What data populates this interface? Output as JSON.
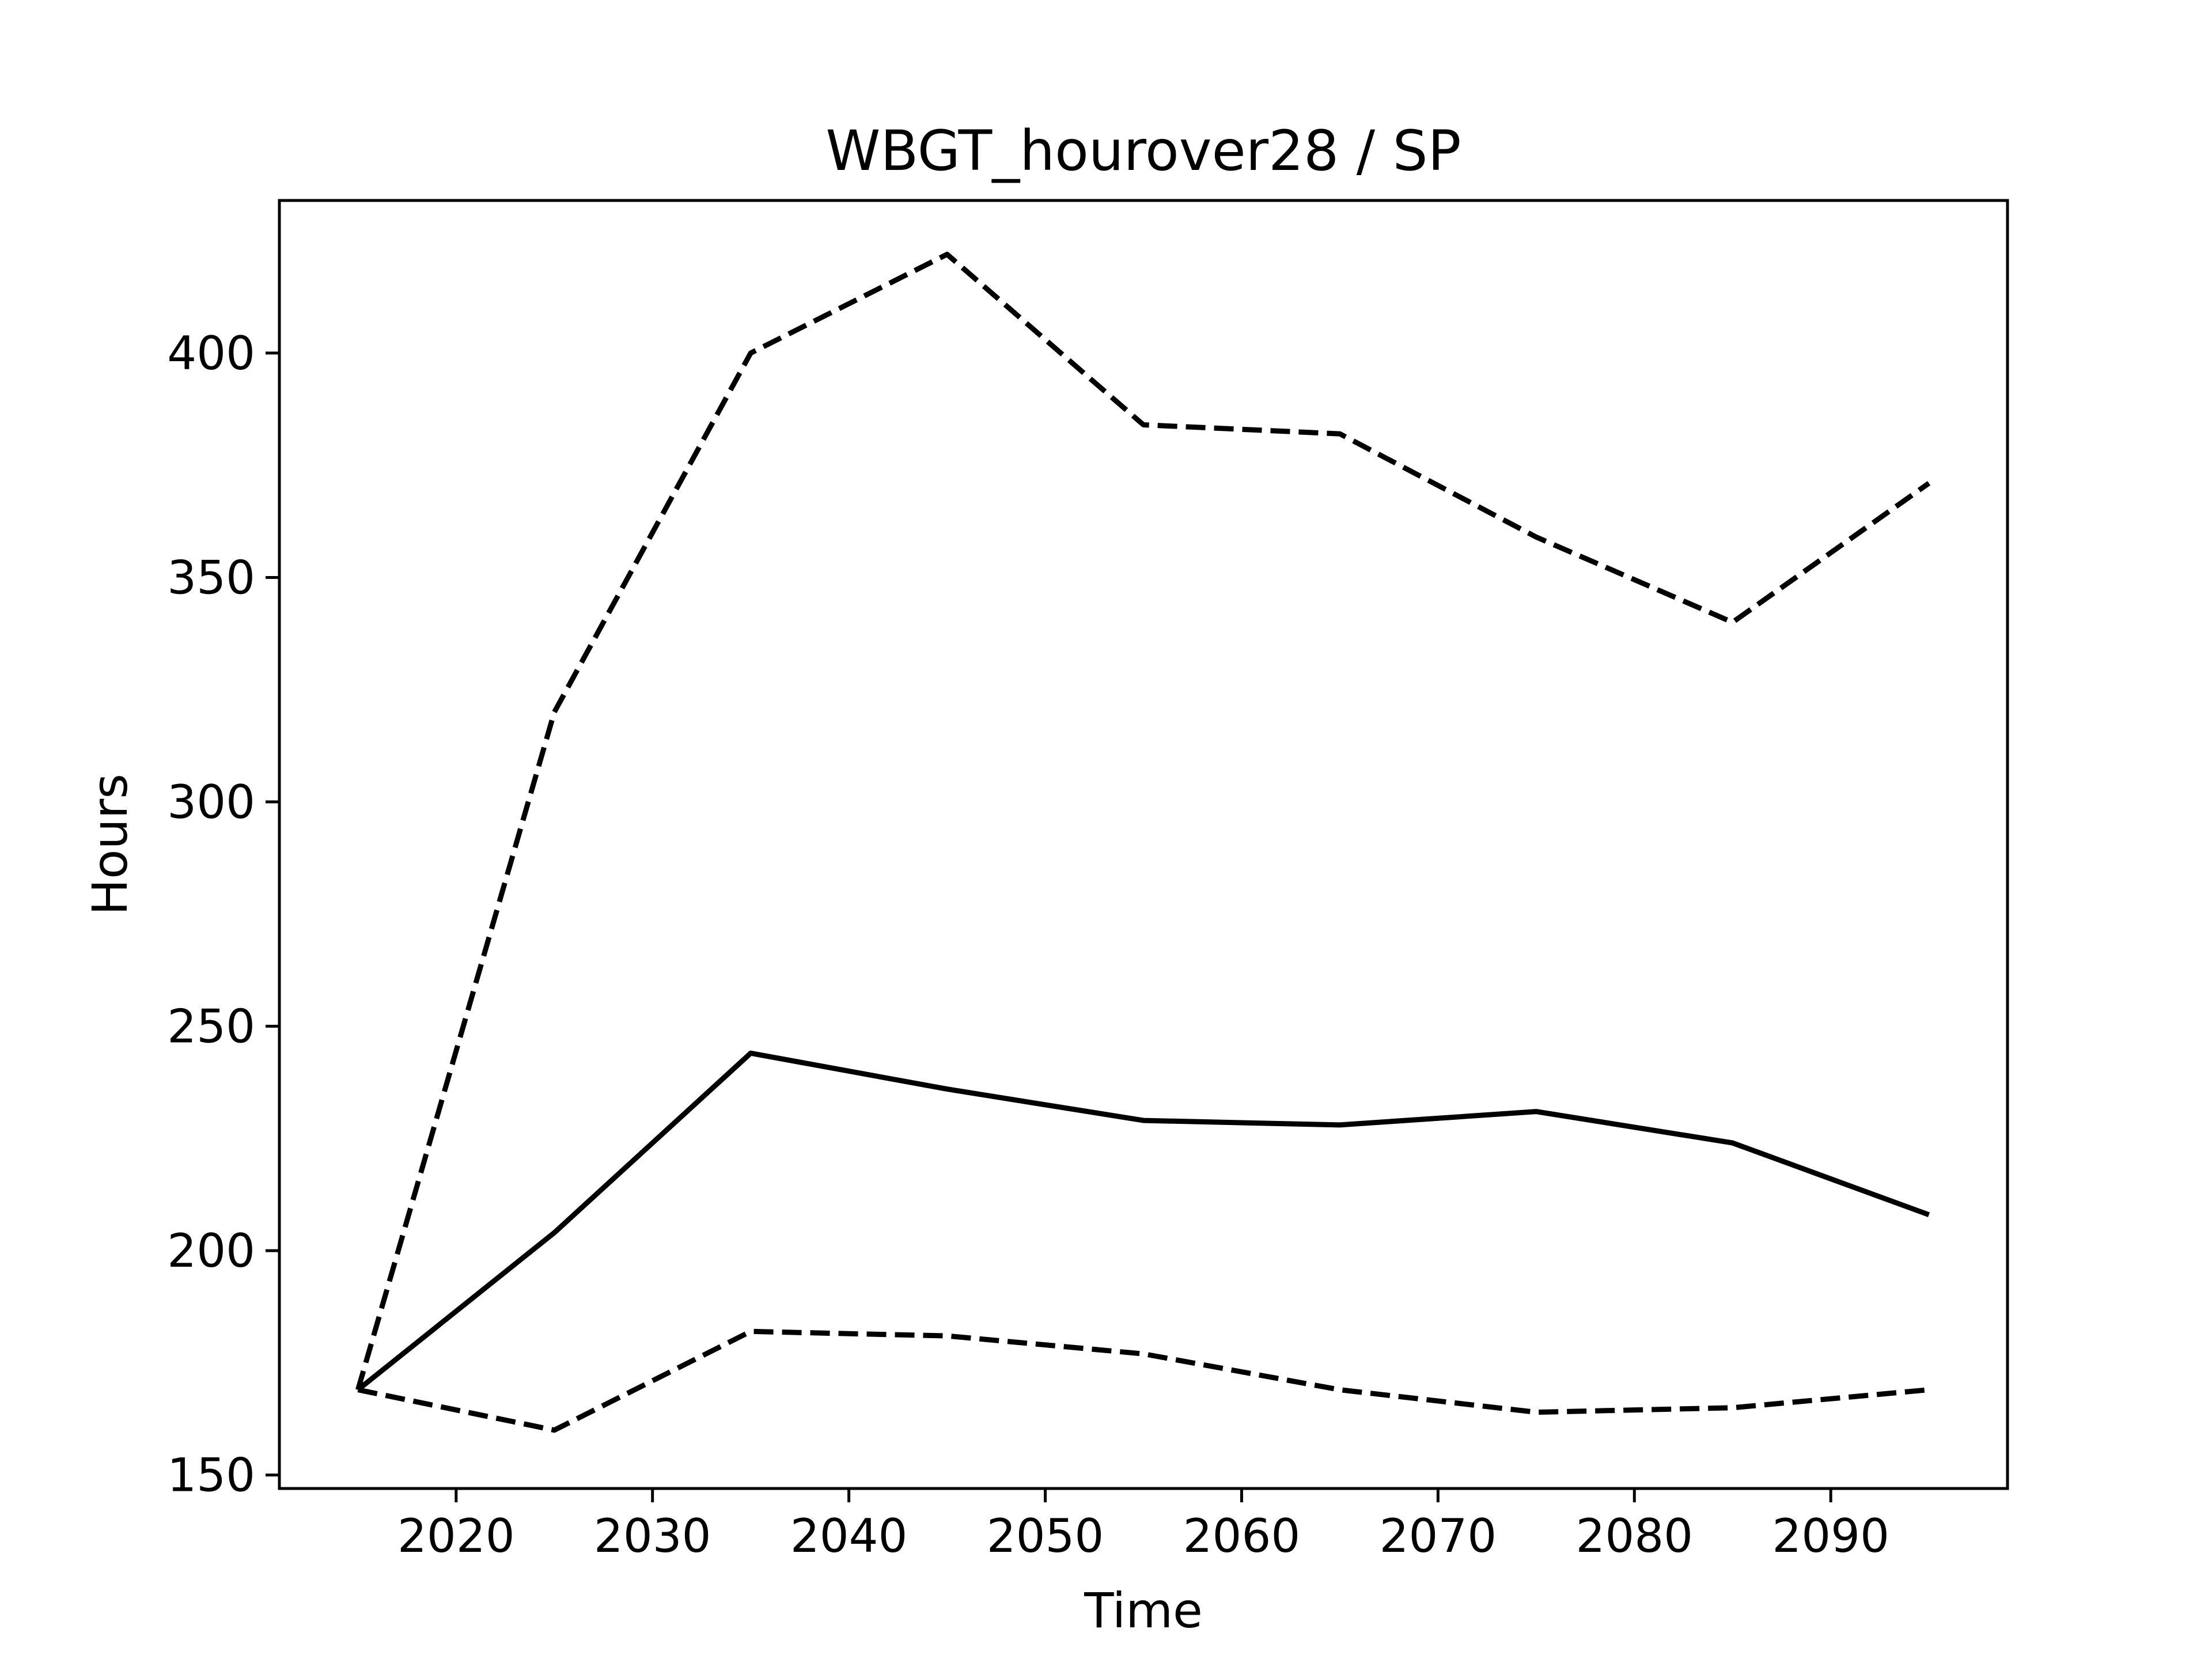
{
  "chart_data": {
    "type": "line",
    "title": "WBGT_hourover28 / SP",
    "xlabel": "Time",
    "ylabel": "Hours",
    "x": [
      2015,
      2025,
      2035,
      2045,
      2055,
      2065,
      2075,
      2085,
      2095
    ],
    "series": [
      {
        "style": "solid",
        "values": [
          169,
          204,
          244,
          236,
          229,
          228,
          231,
          224,
          208
        ]
      },
      {
        "style": "dashed",
        "values": [
          169,
          320,
          400,
          422,
          384,
          382,
          359,
          340,
          371
        ]
      },
      {
        "style": "dashed",
        "values": [
          169,
          160,
          182,
          181,
          177,
          169,
          164,
          165,
          169
        ]
      }
    ],
    "xticks": [
      2020,
      2030,
      2040,
      2050,
      2060,
      2070,
      2080,
      2090
    ],
    "yticks": [
      150,
      200,
      250,
      300,
      350,
      400
    ],
    "xlim": [
      2011,
      2099
    ],
    "ylim": [
      147,
      434
    ],
    "grid": false,
    "line_color": "#000000"
  }
}
